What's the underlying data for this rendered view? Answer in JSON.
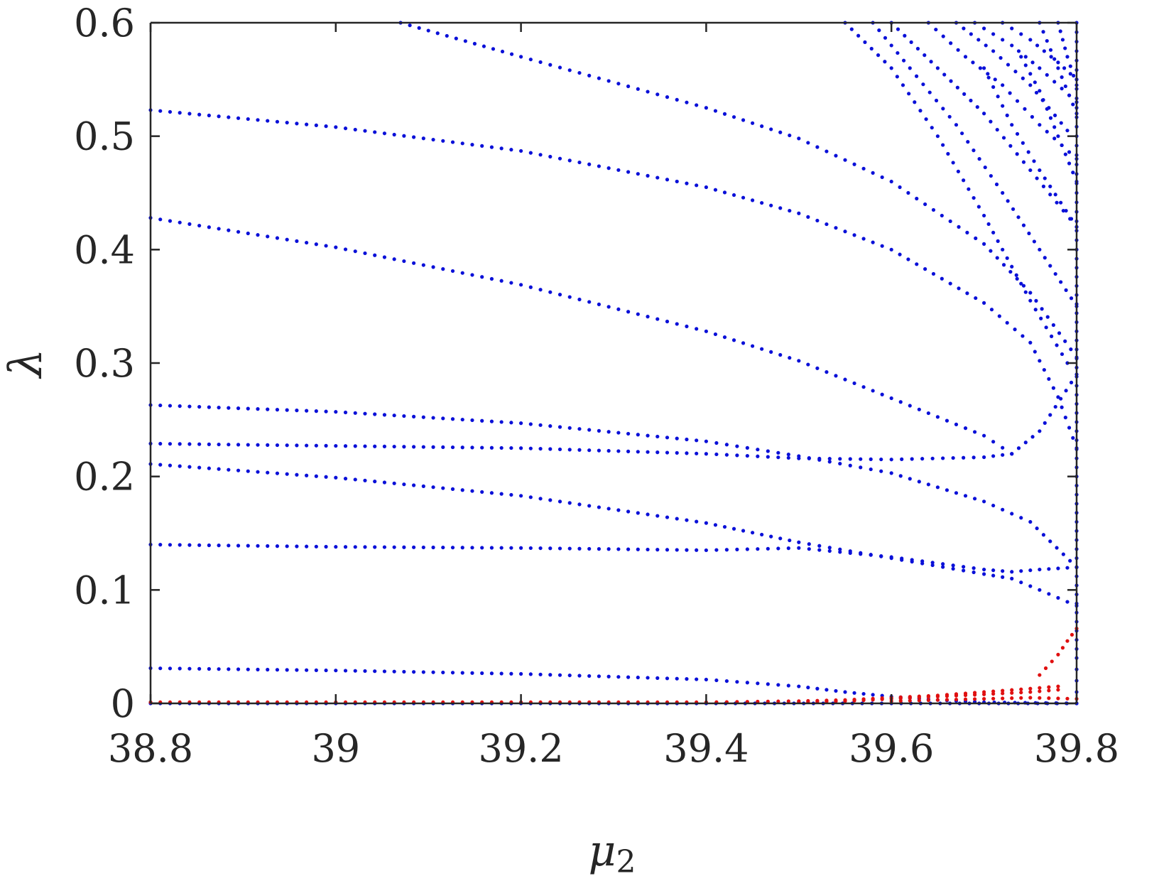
{
  "chart_data": {
    "type": "scatter",
    "title": "",
    "xlabel": "μ",
    "xlabel_subscript": "2",
    "ylabel": "λ",
    "xlim": [
      38.8,
      39.8
    ],
    "ylim": [
      0,
      0.6
    ],
    "x_ticks": [
      38.8,
      39.0,
      39.2,
      39.4,
      39.6,
      39.8
    ],
    "x_tick_labels": [
      "38.8",
      "39",
      "39.2",
      "39.4",
      "39.6",
      "39.8"
    ],
    "y_ticks": [
      0,
      0.1,
      0.2,
      0.3,
      0.4,
      0.5,
      0.6
    ],
    "y_tick_labels": [
      "0",
      "0.1",
      "0.2",
      "0.3",
      "0.4",
      "0.5",
      "0.6"
    ],
    "grid": false,
    "legend": "none",
    "colors": {
      "stable": "#0a10d8",
      "unstable": "#e01010",
      "axis": "#262626"
    },
    "series": [
      {
        "color": "blue",
        "points": [
          [
            38.8,
            0.523
          ],
          [
            39.0,
            0.508
          ],
          [
            39.2,
            0.487
          ],
          [
            39.4,
            0.455
          ],
          [
            39.5,
            0.432
          ],
          [
            39.6,
            0.4
          ],
          [
            39.7,
            0.353
          ],
          [
            39.75,
            0.318
          ],
          [
            39.78,
            0.27
          ],
          [
            39.8,
            0.225
          ]
        ]
      },
      {
        "color": "blue",
        "points": [
          [
            38.8,
            0.428
          ],
          [
            39.0,
            0.402
          ],
          [
            39.2,
            0.369
          ],
          [
            39.4,
            0.328
          ],
          [
            39.5,
            0.302
          ],
          [
            39.6,
            0.269
          ],
          [
            39.7,
            0.236
          ],
          [
            39.73,
            0.22
          ]
        ]
      },
      {
        "color": "blue",
        "points": [
          [
            39.07,
            0.6
          ],
          [
            39.2,
            0.57
          ],
          [
            39.4,
            0.525
          ],
          [
            39.5,
            0.498
          ],
          [
            39.6,
            0.46
          ],
          [
            39.7,
            0.405
          ],
          [
            39.75,
            0.362
          ],
          [
            39.8,
            0.305
          ]
        ]
      },
      {
        "color": "blue",
        "points": [
          [
            38.8,
            0.263
          ],
          [
            39.0,
            0.257
          ],
          [
            39.2,
            0.247
          ],
          [
            39.4,
            0.231
          ],
          [
            39.5,
            0.218
          ],
          [
            39.6,
            0.203
          ],
          [
            39.7,
            0.178
          ],
          [
            39.75,
            0.16
          ],
          [
            39.8,
            0.12
          ]
        ]
      },
      {
        "color": "blue",
        "points": [
          [
            38.8,
            0.229
          ],
          [
            39.0,
            0.227
          ],
          [
            39.2,
            0.225
          ],
          [
            39.4,
            0.22
          ],
          [
            39.5,
            0.216
          ],
          [
            39.6,
            0.215
          ],
          [
            39.7,
            0.217
          ],
          [
            39.73,
            0.22
          ],
          [
            39.76,
            0.24
          ],
          [
            39.8,
            0.29
          ]
        ]
      },
      {
        "color": "blue",
        "points": [
          [
            38.8,
            0.211
          ],
          [
            39.0,
            0.199
          ],
          [
            39.2,
            0.183
          ],
          [
            39.4,
            0.159
          ],
          [
            39.5,
            0.142
          ],
          [
            39.6,
            0.128
          ],
          [
            39.7,
            0.114
          ],
          [
            39.73,
            0.11
          ],
          [
            39.76,
            0.1
          ],
          [
            39.8,
            0.086
          ]
        ]
      },
      {
        "color": "blue",
        "points": [
          [
            38.8,
            0.14
          ],
          [
            39.0,
            0.138
          ],
          [
            39.2,
            0.137
          ],
          [
            39.4,
            0.135
          ],
          [
            39.5,
            0.137
          ],
          [
            39.6,
            0.129
          ],
          [
            39.7,
            0.118
          ],
          [
            39.73,
            0.116
          ],
          [
            39.76,
            0.118
          ],
          [
            39.8,
            0.12
          ]
        ]
      },
      {
        "color": "blue",
        "points": [
          [
            38.8,
            0.031
          ],
          [
            39.0,
            0.029
          ],
          [
            39.2,
            0.026
          ],
          [
            39.4,
            0.021
          ],
          [
            39.5,
            0.015
          ],
          [
            39.55,
            0.01
          ],
          [
            39.6,
            0.006
          ],
          [
            39.65,
            0.003
          ],
          [
            39.7,
            0.001
          ],
          [
            39.8,
            0.0
          ]
        ]
      },
      {
        "color": "blue",
        "points": [
          [
            38.8,
            0.0
          ],
          [
            39.0,
            0.0
          ],
          [
            39.2,
            0.0
          ],
          [
            39.4,
            0.0
          ],
          [
            39.6,
            0.0
          ],
          [
            39.8,
            0.0
          ]
        ]
      },
      {
        "color": "blue",
        "points": [
          [
            39.55,
            0.6
          ],
          [
            39.6,
            0.56
          ],
          [
            39.65,
            0.5
          ],
          [
            39.7,
            0.43
          ],
          [
            39.75,
            0.355
          ],
          [
            39.79,
            0.3
          ]
        ]
      },
      {
        "color": "blue",
        "points": [
          [
            39.58,
            0.6
          ],
          [
            39.62,
            0.56
          ],
          [
            39.67,
            0.51
          ],
          [
            39.72,
            0.45
          ],
          [
            39.76,
            0.4
          ],
          [
            39.8,
            0.35
          ]
        ]
      },
      {
        "color": "blue",
        "points": [
          [
            39.6,
            0.6
          ],
          [
            39.65,
            0.56
          ],
          [
            39.7,
            0.52
          ],
          [
            39.75,
            0.47
          ],
          [
            39.8,
            0.42
          ]
        ]
      },
      {
        "color": "blue",
        "points": [
          [
            39.64,
            0.6
          ],
          [
            39.68,
            0.57
          ],
          [
            39.72,
            0.545
          ],
          [
            39.76,
            0.51
          ],
          [
            39.8,
            0.48
          ]
        ]
      },
      {
        "color": "blue",
        "points": [
          [
            39.67,
            0.6
          ],
          [
            39.71,
            0.575
          ],
          [
            39.75,
            0.545
          ],
          [
            39.79,
            0.505
          ]
        ]
      },
      {
        "color": "blue",
        "points": [
          [
            39.69,
            0.6
          ],
          [
            39.73,
            0.58
          ],
          [
            39.76,
            0.56
          ],
          [
            39.8,
            0.53
          ]
        ]
      },
      {
        "color": "blue",
        "points": [
          [
            39.72,
            0.6
          ],
          [
            39.75,
            0.585
          ],
          [
            39.78,
            0.565
          ],
          [
            39.8,
            0.55
          ]
        ]
      },
      {
        "color": "blue",
        "points": [
          [
            39.74,
            0.57
          ],
          [
            39.76,
            0.54
          ],
          [
            39.78,
            0.5
          ],
          [
            39.8,
            0.46
          ]
        ]
      },
      {
        "color": "blue",
        "points": [
          [
            39.76,
            0.6
          ],
          [
            39.78,
            0.56
          ],
          [
            39.8,
            0.52
          ]
        ]
      },
      {
        "color": "blue",
        "points": [
          [
            39.78,
            0.6
          ],
          [
            39.79,
            0.57
          ],
          [
            39.8,
            0.545
          ]
        ]
      },
      {
        "color": "blue",
        "points": [
          [
            39.7,
            0.56
          ],
          [
            39.73,
            0.51
          ],
          [
            39.76,
            0.47
          ],
          [
            39.8,
            0.42
          ]
        ]
      },
      {
        "color": "blue",
        "points": [
          [
            39.8,
            0.6
          ],
          [
            39.8,
            0.55
          ],
          [
            39.8,
            0.5
          ],
          [
            39.8,
            0.45
          ],
          [
            39.8,
            0.4
          ],
          [
            39.8,
            0.36
          ],
          [
            39.8,
            0.32
          ],
          [
            39.8,
            0.28
          ],
          [
            39.8,
            0.24
          ],
          [
            39.8,
            0.2
          ],
          [
            39.8,
            0.16
          ],
          [
            39.8,
            0.12
          ],
          [
            39.8,
            0.08
          ],
          [
            39.8,
            0.04
          ],
          [
            39.8,
            0.01
          ]
        ]
      },
      {
        "color": "red",
        "points": [
          [
            38.8,
            0.001
          ],
          [
            39.0,
            0.001
          ],
          [
            39.2,
            0.001
          ],
          [
            39.4,
            0.001
          ],
          [
            39.5,
            0.002
          ],
          [
            39.55,
            0.003
          ],
          [
            39.6,
            0.005
          ],
          [
            39.65,
            0.007
          ],
          [
            39.7,
            0.01
          ],
          [
            39.75,
            0.013
          ],
          [
            39.78,
            0.015
          ]
        ]
      },
      {
        "color": "red",
        "points": [
          [
            39.5,
            0.001
          ],
          [
            39.55,
            0.002
          ],
          [
            39.6,
            0.004
          ],
          [
            39.65,
            0.006
          ],
          [
            39.7,
            0.008
          ],
          [
            39.75,
            0.01
          ],
          [
            39.78,
            0.012
          ]
        ]
      },
      {
        "color": "red",
        "points": [
          [
            39.6,
            0.002
          ],
          [
            39.65,
            0.003
          ],
          [
            39.7,
            0.004
          ],
          [
            39.75,
            0.005
          ],
          [
            39.8,
            0.004
          ]
        ]
      },
      {
        "color": "red",
        "points": [
          [
            39.76,
            0.025
          ],
          [
            39.78,
            0.043
          ],
          [
            39.79,
            0.055
          ],
          [
            39.8,
            0.066
          ]
        ]
      }
    ]
  }
}
